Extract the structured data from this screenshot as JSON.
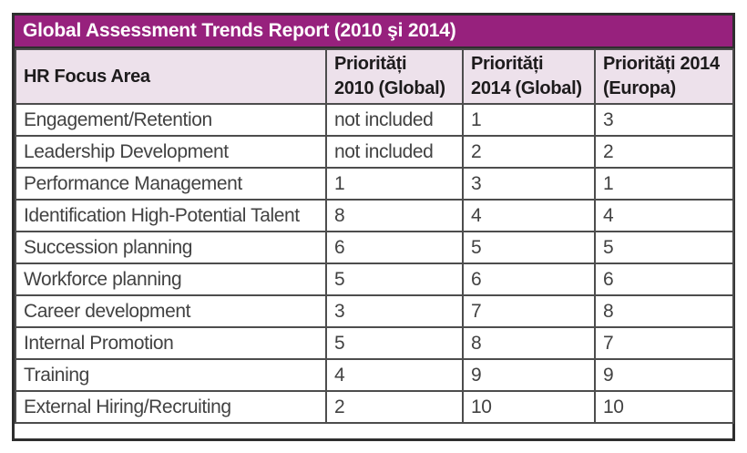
{
  "report": {
    "title": "Global Assessment Trends Report (2010 şi 2014)",
    "accent_color": "#97217d",
    "header_bg_color": "#ede1eb",
    "table": {
      "headers": [
        "HR Focus Area",
        "Priorități\n2010 (Global)",
        "Priorități\n2014 (Global)",
        "Priorități 2014\n(Europa)"
      ],
      "rows": [
        [
          "Engagement/Retention",
          "not included",
          "1",
          "3"
        ],
        [
          "Leadership Development",
          "not included",
          "2",
          "2"
        ],
        [
          "Performance Management",
          "1",
          "3",
          "1"
        ],
        [
          "Identification High-Potential Talent",
          "8",
          "4",
          "4"
        ],
        [
          "Succession planning",
          "6",
          "5",
          "5"
        ],
        [
          "Workforce planning",
          "5",
          "6",
          "6"
        ],
        [
          "Career development",
          "3",
          "7",
          "8"
        ],
        [
          "Internal Promotion",
          "5",
          "8",
          "7"
        ],
        [
          "Training",
          "4",
          "9",
          "9"
        ],
        [
          "External Hiring/Recruiting",
          "2",
          "10",
          "10"
        ]
      ]
    }
  },
  "chart_data": {
    "type": "table",
    "title": "Global Assessment Trends Report (2010 şi 2014)",
    "columns": [
      "HR Focus Area",
      "Priorități 2010 (Global)",
      "Priorități 2014 (Global)",
      "Priorități 2014 (Europa)"
    ],
    "rows": [
      [
        "Engagement/Retention",
        "not included",
        1,
        3
      ],
      [
        "Leadership Development",
        "not included",
        2,
        2
      ],
      [
        "Performance Management",
        1,
        3,
        1
      ],
      [
        "Identification High-Potential Talent",
        8,
        4,
        4
      ],
      [
        "Succession planning",
        6,
        5,
        5
      ],
      [
        "Workforce planning",
        5,
        6,
        6
      ],
      [
        "Career development",
        3,
        7,
        8
      ],
      [
        "Internal Promotion",
        5,
        8,
        7
      ],
      [
        "Training",
        4,
        9,
        9
      ],
      [
        "External Hiring/Recruiting",
        2,
        10,
        10
      ]
    ]
  }
}
